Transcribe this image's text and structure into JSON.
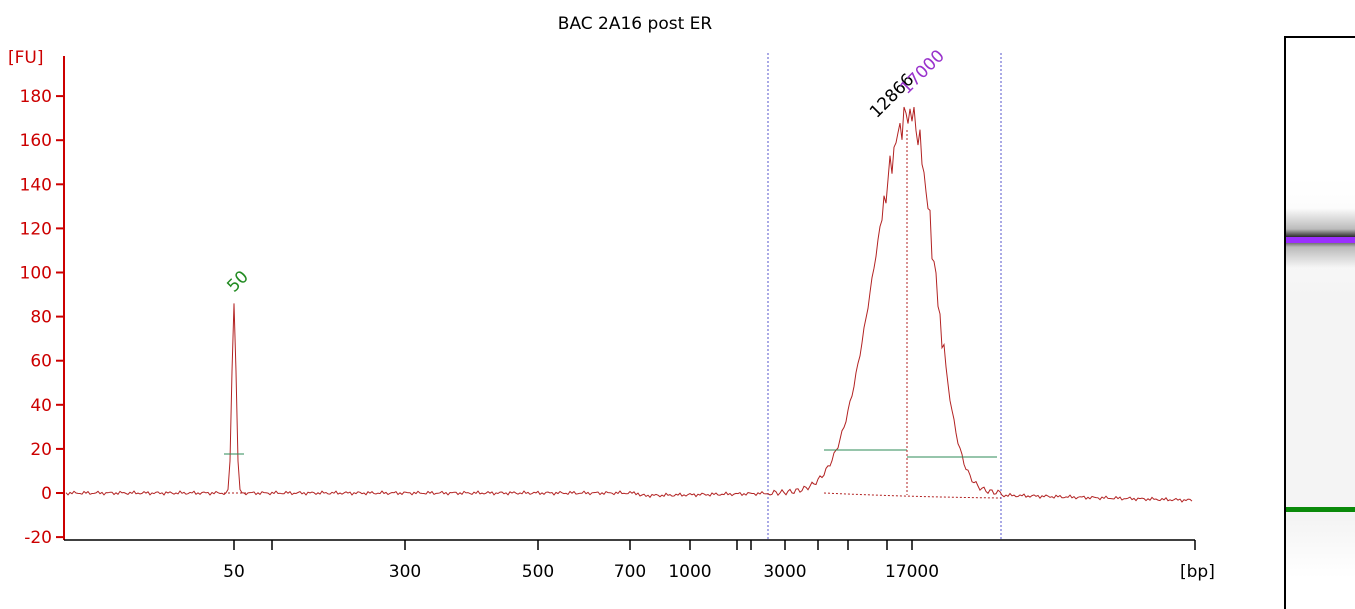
{
  "chart_data": {
    "type": "line",
    "title": "BAC 2A16 post ER",
    "ylabel": "[FU]",
    "xlabel": "[bp]",
    "ylim": [
      -20,
      185
    ],
    "y_ticks": [
      -20,
      0,
      20,
      40,
      60,
      80,
      100,
      120,
      140,
      160,
      180
    ],
    "x_axis": {
      "scale": "nonlinear (ladder-calibrated)",
      "tick_labels": [
        "50",
        "300",
        "500",
        "700",
        "1000",
        "3000",
        "17000"
      ]
    },
    "series": [
      {
        "color": "#b22222",
        "trace_bp_fu": [
          [
            50,
            0
          ],
          [
            50,
            86
          ],
          [
            50,
            0
          ],
          [
            1000,
            -1
          ],
          [
            3000,
            0
          ],
          [
            6000,
            20
          ],
          [
            10000,
            100
          ],
          [
            12866,
            167
          ],
          [
            17000,
            176
          ],
          [
            22000,
            140
          ],
          [
            35000,
            17
          ],
          [
            50000,
            0
          ]
        ]
      }
    ],
    "peak_labels": [
      {
        "text": "50",
        "bp": 50,
        "fu": 88,
        "color": "#228b22"
      },
      {
        "text": "12866",
        "bp": 12866,
        "fu": 167,
        "color": "#000000"
      },
      {
        "text": "17000",
        "bp": 17000,
        "fu": 176,
        "color": "#9932cc"
      }
    ],
    "colors": {
      "axis": "#cc0000",
      "trace": "#b22222",
      "region_marker": "#5555cc",
      "baseline_segment": "#2e8b57",
      "lower_marker": "#228b22",
      "upper_marker": "#9932cc"
    }
  }
}
